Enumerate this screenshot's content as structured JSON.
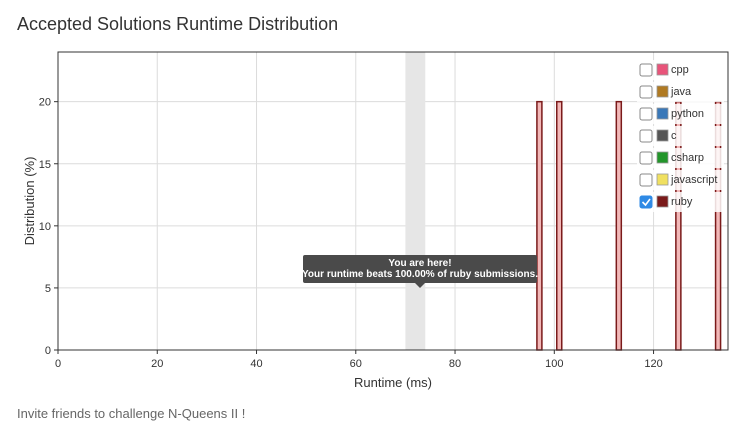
{
  "page": {
    "title": "Accepted Solutions Runtime Distribution",
    "footer": "Invite friends to challenge N-Queens II !"
  },
  "tooltip": {
    "line1": "You are here!",
    "line2": "Your runtime beats 100.00% of ruby submissions."
  },
  "chart_data": {
    "type": "bar",
    "title": "",
    "xlabel": "Runtime (ms)",
    "ylabel": "Distribution (%)",
    "xlim": [
      0,
      135
    ],
    "ylim": [
      0,
      24
    ],
    "xticks": [
      0,
      20,
      40,
      60,
      80,
      100,
      120
    ],
    "yticks": [
      0,
      5,
      10,
      15,
      20
    ],
    "grid": true,
    "legend_position": "top-right",
    "highlight": {
      "x_start": 70,
      "x_end": 74,
      "label": "You are here!"
    },
    "series": [
      {
        "name": "cpp",
        "color": "#e8547a",
        "checked": false,
        "points": []
      },
      {
        "name": "java",
        "color": "#b07a22",
        "checked": false,
        "points": []
      },
      {
        "name": "python",
        "color": "#3a78b8",
        "checked": false,
        "points": []
      },
      {
        "name": "c",
        "color": "#555555",
        "checked": false,
        "points": []
      },
      {
        "name": "csharp",
        "color": "#22952a",
        "checked": false,
        "points": []
      },
      {
        "name": "javascript",
        "color": "#f0e060",
        "checked": false,
        "points": []
      },
      {
        "name": "ruby",
        "color": "#7a1a1a",
        "checked": true,
        "points": [
          {
            "x": 97,
            "y": 20
          },
          {
            "x": 101,
            "y": 20
          },
          {
            "x": 113,
            "y": 20
          },
          {
            "x": 125,
            "y": 20
          },
          {
            "x": 133,
            "y": 20
          }
        ]
      }
    ]
  }
}
